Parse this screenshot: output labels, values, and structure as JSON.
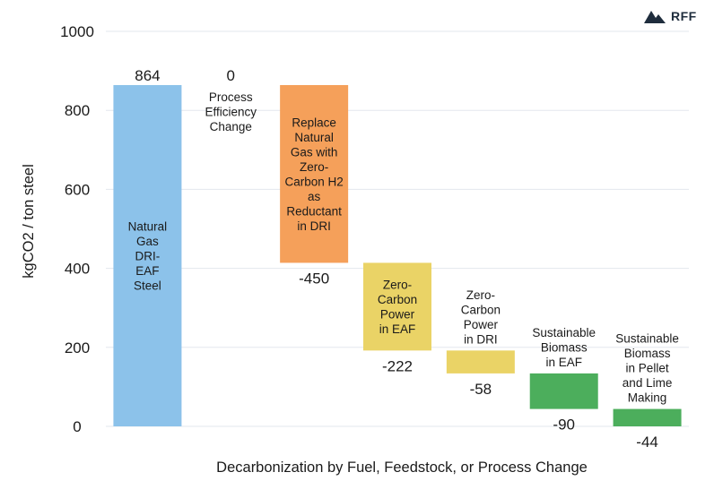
{
  "brand": {
    "name": "RFF",
    "icon": "mountain-logo-icon"
  },
  "chart_data": {
    "type": "waterfall",
    "xlabel": "Decarbonization by Fuel, Feedstock, or Process Change",
    "ylabel": "kgCO2 / ton steel",
    "ylim": [
      0,
      1000
    ],
    "yticks": [
      0,
      200,
      400,
      600,
      800,
      1000
    ],
    "grid": true,
    "steps": [
      {
        "label": [
          "Natural",
          "Gas",
          "DRI-",
          "EAF",
          "Steel"
        ],
        "value": 864,
        "value_label": "864",
        "color": "#8cc2ea",
        "text_color": "#1a1a1a",
        "label_pos": "inside"
      },
      {
        "label": [
          "Process",
          "Efficiency",
          "Change"
        ],
        "value": 0,
        "value_label": "0",
        "color": "#cccccc",
        "text_color": "#1a1a1a",
        "label_pos": "below-value"
      },
      {
        "label": [
          "Replace",
          "Natural",
          "Gas with",
          "Zero-",
          "Carbon H2",
          "as",
          "Reductant",
          "in DRI"
        ],
        "value": -450,
        "value_label": "-450",
        "color": "#f5a05a",
        "text_color": "#1a1a1a",
        "label_pos": "inside"
      },
      {
        "label": [
          "Zero-",
          "Carbon",
          "Power",
          "in EAF"
        ],
        "value": -222,
        "value_label": "-222",
        "color": "#ead366",
        "text_color": "#1a1a1a",
        "label_pos": "inside"
      },
      {
        "label": [
          "Zero-",
          "Carbon",
          "Power",
          "in DRI"
        ],
        "value": -58,
        "value_label": "-58",
        "color": "#ead366",
        "text_color": "#1a1a1a",
        "label_pos": "above"
      },
      {
        "label": [
          "Sustainable",
          "Biomass",
          "in EAF"
        ],
        "value": -90,
        "value_label": "-90",
        "color": "#4cae5c",
        "text_color": "#1a1a1a",
        "label_pos": "above"
      },
      {
        "label": [
          "Sustainable",
          "Biomass",
          "in Pellet",
          "and Lime",
          "Making"
        ],
        "value": -44,
        "value_label": "-44",
        "color": "#4cae5c",
        "text_color": "#1a1a1a",
        "label_pos": "above"
      }
    ]
  }
}
